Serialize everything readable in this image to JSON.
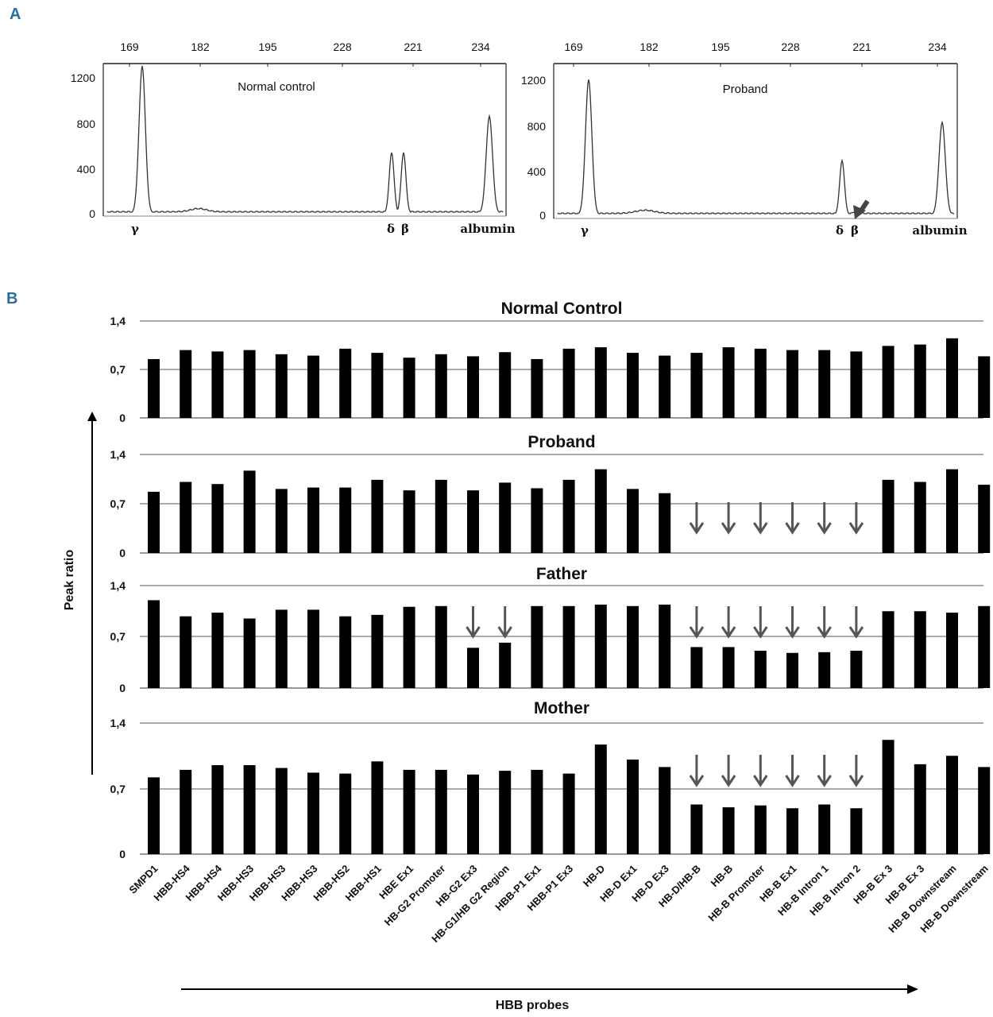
{
  "colors": {
    "panel_letter": "#2a6f9e",
    "bar": "#000000",
    "arrow": "#555555",
    "trace": "#333333"
  },
  "chart_data": [
    {
      "type": "line",
      "panel": "A",
      "title": "Normal control",
      "top_axis_ticks": [
        "169",
        "182",
        "195",
        "228",
        "221",
        "234"
      ],
      "ylim": [
        0,
        1300
      ],
      "y_ticks": [
        "1200",
        "800",
        "400",
        "0"
      ],
      "peaks": [
        {
          "label": "γ",
          "height": 1290
        },
        {
          "label": "δ",
          "height": 530
        },
        {
          "label": "β",
          "height": 530
        },
        {
          "label": "albumin",
          "height": 850
        }
      ]
    },
    {
      "type": "line",
      "panel": "A",
      "title": "Proband",
      "top_axis_ticks": [
        "169",
        "182",
        "195",
        "228",
        "221",
        "234"
      ],
      "ylim": [
        0,
        1300
      ],
      "y_ticks": [
        "1200",
        "800",
        "400",
        "0"
      ],
      "peaks": [
        {
          "label": "γ",
          "height": 1200
        },
        {
          "label": "δ",
          "height": 480
        },
        {
          "label": "β",
          "height": 20
        },
        {
          "label": "albumin",
          "height": 820
        }
      ]
    },
    {
      "type": "bar",
      "panel": "B",
      "ylabel": "Peak ratio",
      "xlabel": "HBB probes",
      "y_ticks": [
        "1,4",
        "0,7",
        "0"
      ],
      "ylim": [
        0,
        1.4
      ],
      "categories": [
        "SMPD1",
        "HBB-HS4",
        "HBB-HS4",
        "HBB-HS3",
        "HBB-HS3",
        "HBB-HS3",
        "HBB-HS2",
        "HBB-HS1",
        "HBE Ex1",
        "HB-G2 Promoter",
        "HB-G2 Ex3",
        "HB-G1/HB G2 Region",
        "HBB-P1 Ex1",
        "HBB-P1 Ex3",
        "HB-D",
        "HB-D Ex1",
        "HB-D Ex3",
        "HB-D/HB-B",
        "HB-B",
        "HB-B Promoter",
        "HB-B Ex1",
        "HB-B Intron 1",
        "HB-B Intron 2",
        "HB-B Ex 3",
        "HB-B Ex 3",
        "HB-B Downstream",
        "HB-B Downstream"
      ],
      "series": [
        {
          "name": "Normal Control",
          "values": [
            0.85,
            0.98,
            0.96,
            0.98,
            0.92,
            0.9,
            1.0,
            0.94,
            0.87,
            0.92,
            0.89,
            0.95,
            0.85,
            1.0,
            1.02,
            0.94,
            0.9,
            0.94,
            1.02,
            1.0,
            0.98,
            0.98,
            0.96,
            1.04,
            1.06,
            1.15,
            0.89
          ],
          "arrow_indices": []
        },
        {
          "name": "Proband",
          "values": [
            0.87,
            1.01,
            0.98,
            1.17,
            0.91,
            0.93,
            0.93,
            1.04,
            0.89,
            1.04,
            0.89,
            1.0,
            0.92,
            1.04,
            1.19,
            0.91,
            0.85,
            0,
            0,
            0,
            0,
            0,
            0,
            1.04,
            1.01,
            1.19,
            0.97
          ],
          "arrow_indices": [
            17,
            18,
            19,
            20,
            21,
            22
          ]
        },
        {
          "name": "Father",
          "values": [
            1.2,
            0.98,
            1.03,
            0.95,
            1.07,
            1.07,
            0.98,
            1.0,
            1.11,
            1.12,
            0.55,
            0.62,
            1.12,
            1.12,
            1.14,
            1.12,
            1.14,
            0.56,
            0.56,
            0.51,
            0.48,
            0.49,
            0.51,
            1.05,
            1.05,
            1.03,
            1.12
          ],
          "arrow_indices": [
            10,
            11,
            17,
            18,
            19,
            20,
            21,
            22
          ]
        },
        {
          "name": "Mother",
          "values": [
            0.82,
            0.9,
            0.95,
            0.95,
            0.92,
            0.87,
            0.86,
            0.99,
            0.9,
            0.9,
            0.85,
            0.89,
            0.9,
            0.86,
            1.17,
            1.01,
            0.93,
            0.53,
            0.5,
            0.52,
            0.49,
            0.53,
            0.49,
            1.22,
            0.96,
            1.05,
            0.93
          ],
          "arrow_indices": [
            17,
            18,
            19,
            20,
            21,
            22
          ]
        }
      ]
    }
  ]
}
